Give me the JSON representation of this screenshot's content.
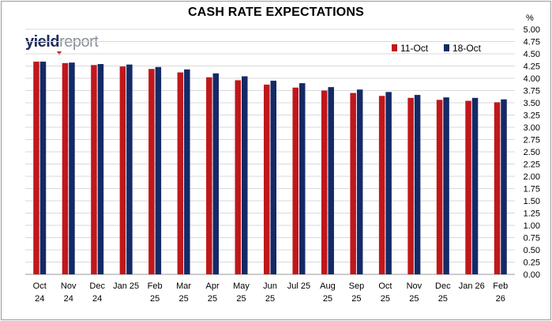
{
  "chart_data": {
    "type": "bar",
    "title": "CASH RATE EXPECTATIONS",
    "y_unit": "%",
    "ylim": [
      0,
      5
    ],
    "y_ticks": [
      "0.00",
      "0.25",
      "0.50",
      "0.75",
      "1.00",
      "1.25",
      "1.50",
      "1.75",
      "2.00",
      "2.25",
      "2.50",
      "2.75",
      "3.00",
      "3.25",
      "3.50",
      "3.75",
      "4.00",
      "4.25",
      "4.50",
      "4.75",
      "5.00"
    ],
    "grid": true,
    "legend_position": "top-right",
    "categories": [
      [
        "Oct",
        "24"
      ],
      [
        "Nov",
        "24"
      ],
      [
        "Dec",
        "24"
      ],
      [
        "Jan 25",
        ""
      ],
      [
        "Feb",
        "25"
      ],
      [
        "Mar",
        "25"
      ],
      [
        "Apr",
        "25"
      ],
      [
        "May",
        "25"
      ],
      [
        "Jun",
        "25"
      ],
      [
        "Jul 25",
        ""
      ],
      [
        "Aug",
        "25"
      ],
      [
        "Sep",
        "25"
      ],
      [
        "Oct",
        "25"
      ],
      [
        "Nov",
        "25"
      ],
      [
        "Dec",
        "25"
      ],
      [
        "Jan 26",
        ""
      ],
      [
        "Feb",
        "26"
      ]
    ],
    "series": [
      {
        "name": "11-Oct",
        "color": "#c0171c",
        "values": [
          4.34,
          4.31,
          4.27,
          4.24,
          4.19,
          4.12,
          4.02,
          3.96,
          3.87,
          3.81,
          3.75,
          3.7,
          3.64,
          3.6,
          3.56,
          3.54,
          3.51
        ]
      },
      {
        "name": "18-Oct",
        "color": "#142a66",
        "values": [
          4.34,
          4.32,
          4.29,
          4.28,
          4.23,
          4.18,
          4.1,
          4.04,
          3.95,
          3.9,
          3.82,
          3.77,
          3.72,
          3.66,
          3.61,
          3.6,
          3.57
        ]
      }
    ]
  },
  "logo": {
    "part1": "yield",
    "part2": "report"
  }
}
